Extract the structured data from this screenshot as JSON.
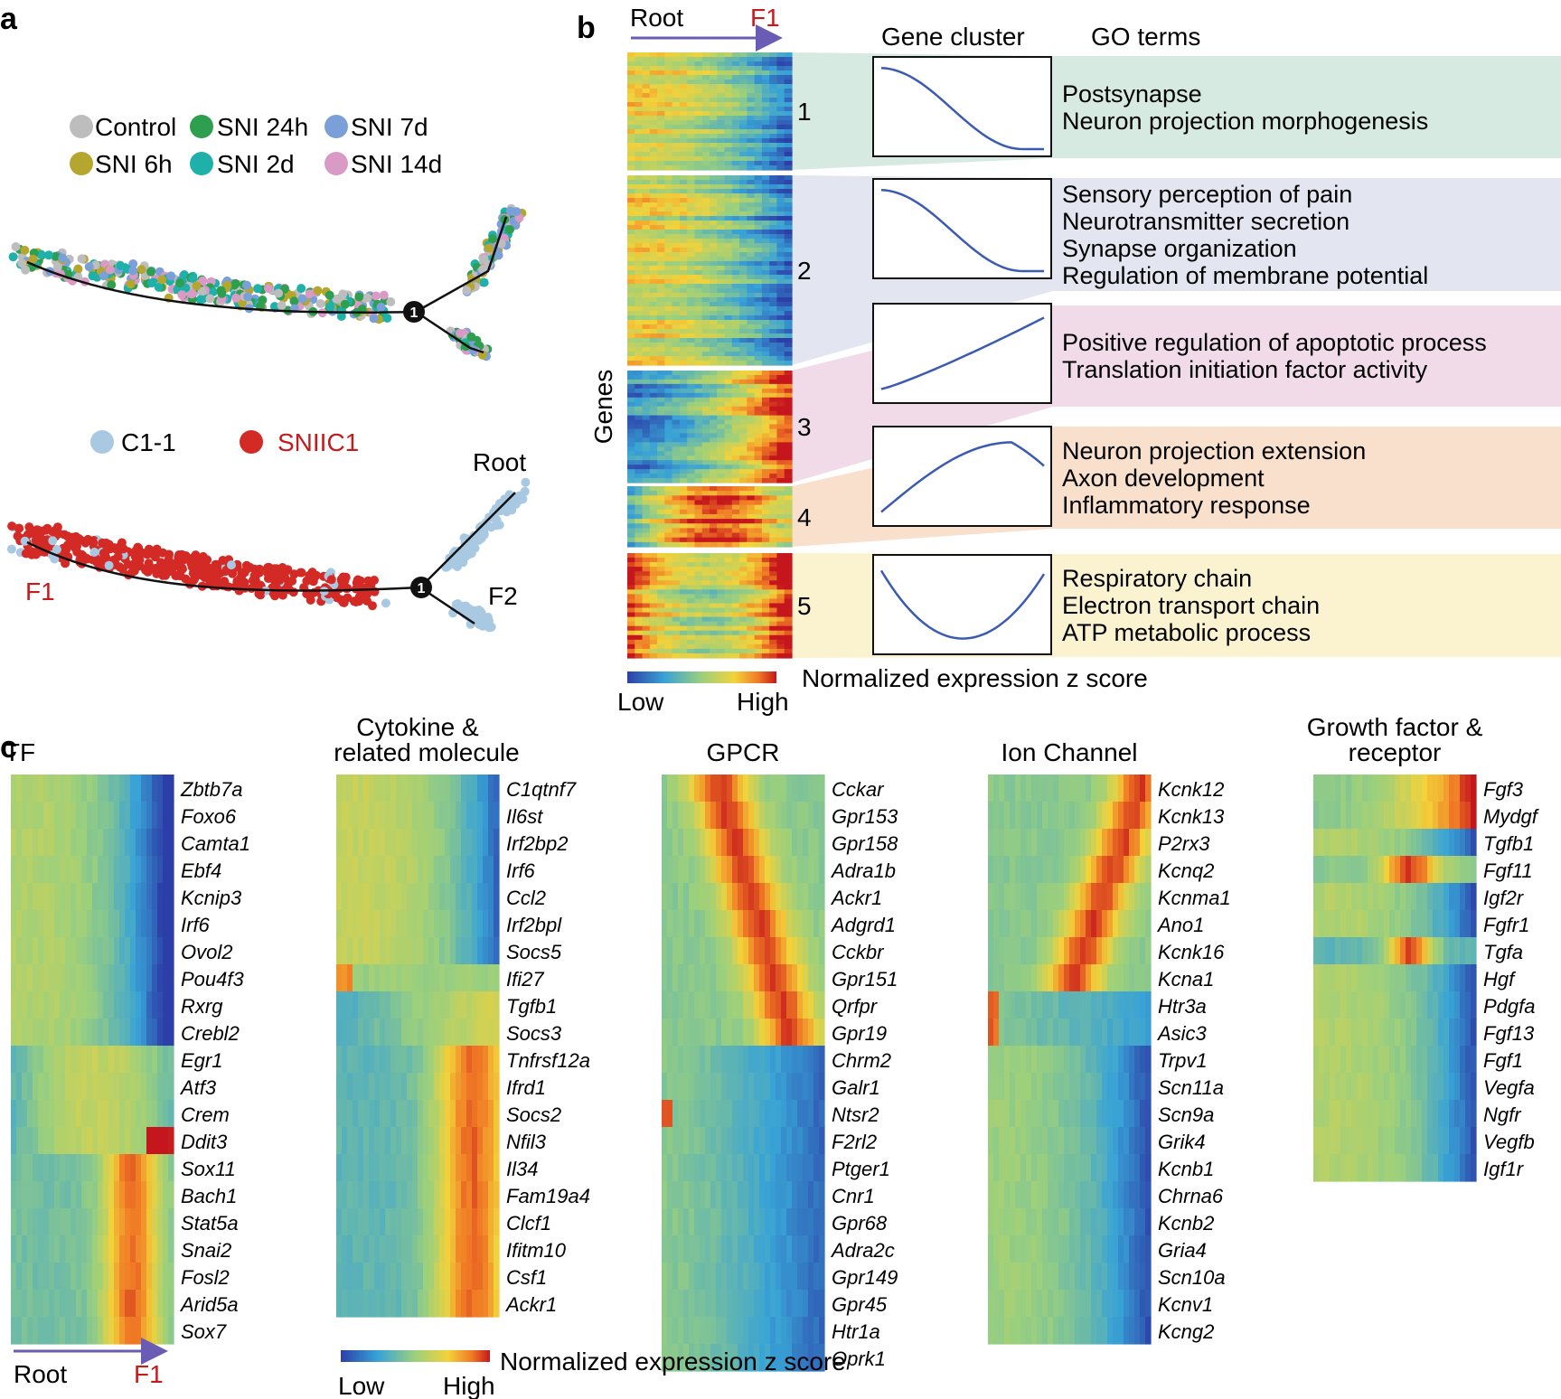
{
  "panel_a": {
    "label": "a",
    "legend_samples": [
      {
        "name": "Control",
        "color": "#bdbdbd"
      },
      {
        "name": "SNI 24h",
        "color": "#2e9e4f"
      },
      {
        "name": "SNI 7d",
        "color": "#7b9fd8"
      },
      {
        "name": "SNI 6h",
        "color": "#b5a630"
      },
      {
        "name": "SNI 2d",
        "color": "#1fb0aa"
      },
      {
        "name": "SNI 14d",
        "color": "#d99ac6"
      }
    ],
    "legend_clusters": [
      {
        "name": "C1-1",
        "color": "#a9c8e2"
      },
      {
        "name": "SNIIC1",
        "color": "#d42a26"
      }
    ],
    "branch_node": "1",
    "root_label": "Root",
    "f1_label": "F1",
    "f2_label": "F2"
  },
  "panel_b": {
    "label": "b",
    "axis_root": "Root",
    "axis_f1": "F1",
    "y_label": "Genes",
    "col_gene_cluster": "Gene cluster",
    "col_go_terms": "GO terms",
    "scale_label": "Normalized expression z score",
    "scale_low": "Low",
    "scale_high": "High",
    "clusters": [
      {
        "id": "1",
        "trend": "decreasing",
        "go": [
          "Postsynapse",
          "Neuron projection morphogenesis"
        ],
        "band_color": "#d6eae1"
      },
      {
        "id": "2",
        "trend": "decreasing",
        "go": [
          "Sensory perception of pain",
          "Neurotransmitter secretion",
          "Synapse organization",
          "Regulation of membrane potential"
        ],
        "band_color": "#e3e6f0"
      },
      {
        "id": "3",
        "trend": "increasing",
        "go": [
          "Positive regulation of apoptotic process",
          "Translation initiation factor activity"
        ],
        "band_color": "#f1dbe8"
      },
      {
        "id": "4",
        "trend": "rise-then-fall",
        "go": [
          "Neuron projection extension",
          "Axon development",
          "Inflammatory response"
        ],
        "band_color": "#f8e0cc"
      },
      {
        "id": "5",
        "trend": "U-shaped",
        "go": [
          "Respiratory chain",
          "Electron transport chain",
          "ATP metabolic process"
        ],
        "band_color": "#fbf3d0"
      }
    ]
  },
  "panel_c": {
    "label": "c",
    "axis_root": "Root",
    "axis_f1": "F1",
    "scale_label": "Normalized expression z score",
    "scale_low": "Low",
    "scale_high": "High",
    "groups": [
      {
        "title": [
          "",
          "TF"
        ],
        "genes": [
          "Zbtb7a",
          "Foxo6",
          "Camta1",
          "Ebf4",
          "Kcnip3",
          "Irf6",
          "Ovol2",
          "Pou4f3",
          "Rxrg",
          "Crebl2",
          "Egr1",
          "Atf3",
          "Crem",
          "Ddit3",
          "Sox11",
          "Bach1",
          "Stat5a",
          "Snai2",
          "Fosl2",
          "Arid5a",
          "Sox7"
        ]
      },
      {
        "title": [
          "Cytokine &",
          "related molecule"
        ],
        "genes": [
          "C1qtnf7",
          "Il6st",
          "Irf2bp2",
          "Irf6",
          "Ccl2",
          "Irf2bpl",
          "Socs5",
          "Ifi27",
          "Tgfb1",
          "Socs3",
          "Tnfrsf12a",
          "Ifrd1",
          "Socs2",
          "Nfil3",
          "Il34",
          "Fam19a4",
          "Clcf1",
          "Ifitm10",
          "Csf1",
          "Ackr1"
        ]
      },
      {
        "title": [
          "",
          "GPCR"
        ],
        "genes": [
          "Cckar",
          "Gpr153",
          "Gpr158",
          "Adra1b",
          "Ackr1",
          "Adgrd1",
          "Cckbr",
          "Gpr151",
          "Qrfpr",
          "Gpr19",
          "Chrm2",
          "Galr1",
          "Ntsr2",
          "F2rl2",
          "Ptger1",
          "Cnr1",
          "Gpr68",
          "Adra2c",
          "Gpr149",
          "Gpr45",
          "Htr1a",
          "Oprk1"
        ]
      },
      {
        "title": [
          "",
          "Ion Channel"
        ],
        "genes": [
          "Kcnk12",
          "Kcnk13",
          "P2rx3",
          "Kcnq2",
          "Kcnma1",
          "Ano1",
          "Kcnk16",
          "Kcna1",
          "Htr3a",
          "Asic3",
          "Trpv1",
          "Scn11a",
          "Scn9a",
          "Grik4",
          "Kcnb1",
          "Chrna6",
          "Kcnb2",
          "Gria4",
          "Scn10a",
          "Kcnv1",
          "Kcng2"
        ]
      },
      {
        "title": [
          "Growth factor &",
          "receptor"
        ],
        "genes": [
          "Fgf3",
          "Mydgf",
          "Tgfb1",
          "Fgf11",
          "Igf2r",
          "Fgfr1",
          "Tgfa",
          "Hgf",
          "Pdgfa",
          "Fgf13",
          "Fgf1",
          "Vegfa",
          "Ngfr",
          "Vegfb",
          "Igf1r"
        ]
      }
    ]
  }
}
